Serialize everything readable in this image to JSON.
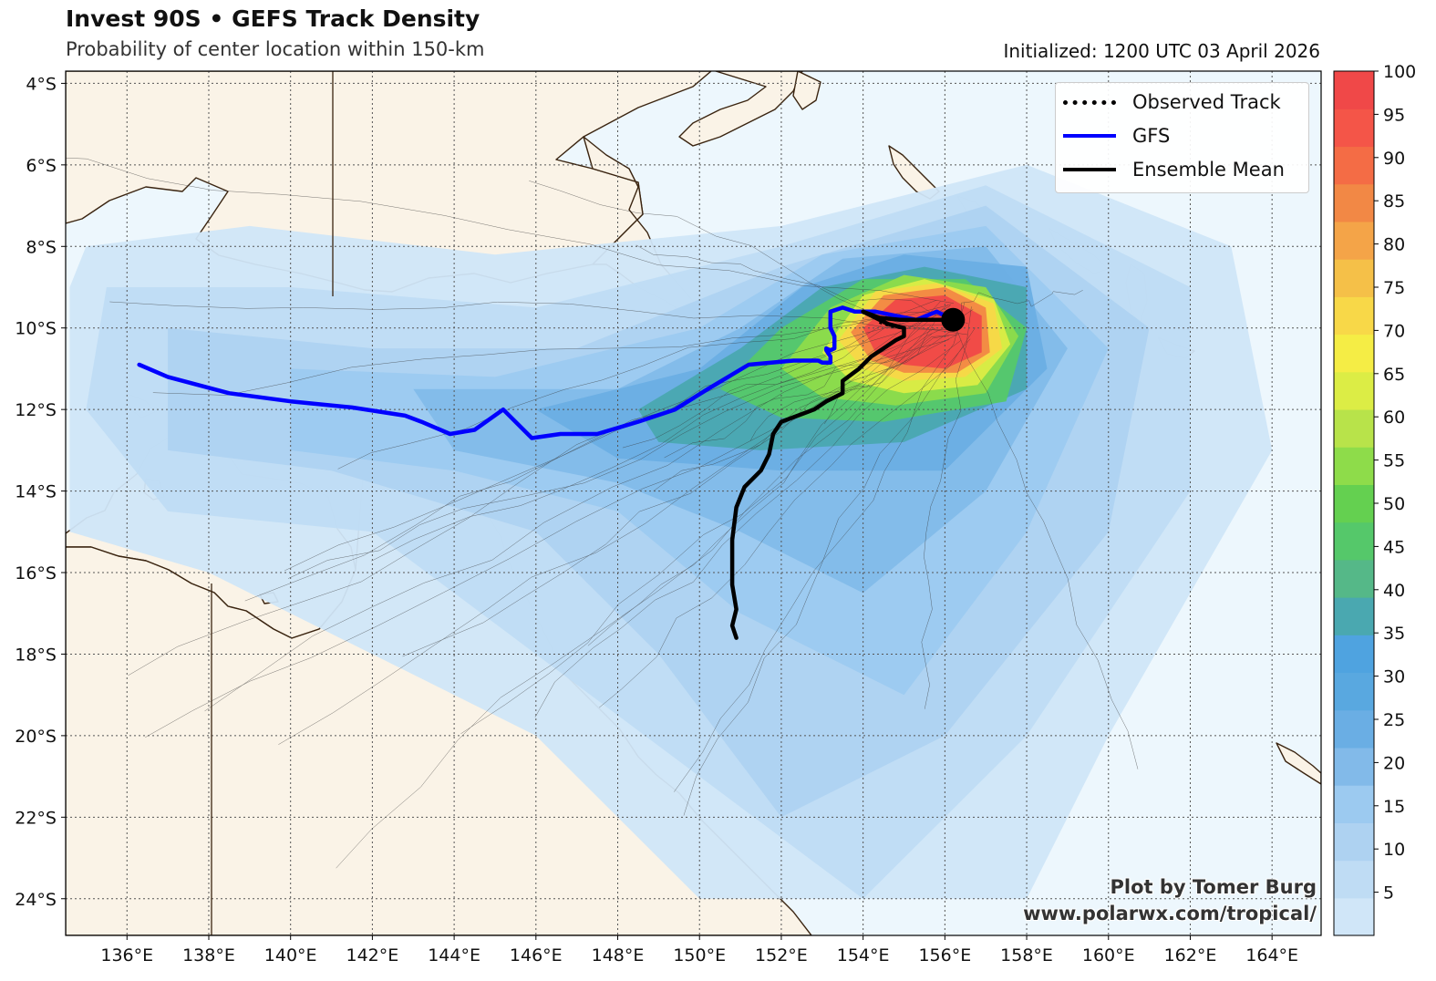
{
  "header": {
    "title": "Invest 90S • GEFS Track Density",
    "subtitle": "Probability of center location within 150-km",
    "initialized": "Initialized: 1200 UTC 03 April 2026"
  },
  "legend": [
    {
      "label": "Observed Track",
      "color": "#000000",
      "style": "dotted"
    },
    {
      "label": "GFS",
      "color": "#0000ff",
      "style": "solid"
    },
    {
      "label": "Ensemble Mean",
      "color": "#000000",
      "style": "solid"
    }
  ],
  "credit": {
    "line1": "Plot by Tomer Burg",
    "line2": "www.polarwx.com/tropical/"
  },
  "axes": {
    "lon_labels": [
      "136°E",
      "138°E",
      "140°E",
      "142°E",
      "144°E",
      "146°E",
      "148°E",
      "150°E",
      "152°E",
      "154°E",
      "156°E",
      "158°E",
      "160°E",
      "162°E",
      "164°E"
    ],
    "lon_values": [
      136,
      138,
      140,
      142,
      144,
      146,
      148,
      150,
      152,
      154,
      156,
      158,
      160,
      162,
      164
    ],
    "lat_labels": [
      "4°S",
      "6°S",
      "8°S",
      "10°S",
      "12°S",
      "14°S",
      "16°S",
      "18°S",
      "20°S",
      "22°S",
      "24°S"
    ],
    "lat_values": [
      -4,
      -6,
      -8,
      -10,
      -12,
      -14,
      -16,
      -18,
      -20,
      -22,
      -24
    ],
    "lon_range": [
      134.5,
      165.2
    ],
    "lat_range": [
      -24.9,
      -3.7
    ]
  },
  "colorbar": {
    "labels": [
      "5",
      "10",
      "15",
      "20",
      "25",
      "30",
      "35",
      "40",
      "45",
      "50",
      "55",
      "60",
      "65",
      "70",
      "75",
      "80",
      "85",
      "90",
      "95",
      "100"
    ],
    "colors": [
      "#d0e6f8",
      "#bfdcf4",
      "#aed2f1",
      "#9ccaf0",
      "#82bae9",
      "#6aaee4",
      "#59a8e0",
      "#4fa3e0",
      "#4aa8b0",
      "#55b888",
      "#55c86a",
      "#64d050",
      "#8edc4a",
      "#b8e34a",
      "#dced45",
      "#f5ed45",
      "#f8d848",
      "#f5c048",
      "#f4a448",
      "#f28845",
      "#f46c45",
      "#f45548",
      "#f04848"
    ]
  },
  "map_data": {
    "storm_position": {
      "lon": 156.2,
      "lat": -9.8
    },
    "gfs_track": [
      [
        136.3,
        -10.9
      ],
      [
        137.0,
        -11.2
      ],
      [
        138.5,
        -11.6
      ],
      [
        140.0,
        -11.8
      ],
      [
        141.5,
        -11.95
      ],
      [
        142.8,
        -12.15
      ],
      [
        143.2,
        -12.3
      ],
      [
        143.9,
        -12.6
      ],
      [
        144.5,
        -12.5
      ],
      [
        145.2,
        -12.0
      ],
      [
        145.9,
        -12.7
      ],
      [
        146.6,
        -12.6
      ],
      [
        147.5,
        -12.6
      ],
      [
        148.5,
        -12.3
      ],
      [
        149.4,
        -12.0
      ],
      [
        150.2,
        -11.5
      ],
      [
        151.2,
        -10.9
      ],
      [
        152.3,
        -10.8
      ],
      [
        152.9,
        -10.8
      ],
      [
        153.0,
        -10.85
      ],
      [
        153.2,
        -10.85
      ],
      [
        153.2,
        -10.7
      ],
      [
        153.1,
        -10.55
      ],
      [
        153.1,
        -10.5
      ],
      [
        153.2,
        -10.55
      ],
      [
        153.3,
        -10.5
      ],
      [
        153.3,
        -10.2
      ],
      [
        153.2,
        -10.0
      ],
      [
        153.2,
        -9.6
      ],
      [
        153.5,
        -9.5
      ],
      [
        153.8,
        -9.6
      ],
      [
        154.3,
        -9.6
      ],
      [
        154.8,
        -9.7
      ],
      [
        155.3,
        -9.8
      ],
      [
        155.8,
        -9.6
      ],
      [
        156.2,
        -9.8
      ]
    ],
    "mean_track": [
      [
        156.2,
        -9.8
      ],
      [
        155.6,
        -9.8
      ],
      [
        154.9,
        -9.8
      ],
      [
        154.4,
        -9.75
      ],
      [
        154.0,
        -9.6
      ],
      [
        154.3,
        -9.75
      ],
      [
        154.6,
        -9.9
      ],
      [
        155.0,
        -10.0
      ],
      [
        155.0,
        -10.2
      ],
      [
        154.8,
        -10.3
      ],
      [
        154.5,
        -10.5
      ],
      [
        154.2,
        -10.7
      ],
      [
        153.9,
        -11.0
      ],
      [
        153.5,
        -11.3
      ],
      [
        153.5,
        -11.6
      ],
      [
        153.1,
        -11.8
      ],
      [
        152.8,
        -12.0
      ],
      [
        152.0,
        -12.3
      ],
      [
        151.8,
        -12.6
      ],
      [
        151.7,
        -13.1
      ],
      [
        151.5,
        -13.5
      ],
      [
        151.1,
        -13.9
      ],
      [
        150.9,
        -14.4
      ],
      [
        150.8,
        -15.2
      ],
      [
        150.8,
        -16.3
      ],
      [
        150.9,
        -16.9
      ],
      [
        150.8,
        -17.3
      ],
      [
        150.9,
        -17.6
      ]
    ],
    "observed_track": [
      [
        154.4,
        -9.85
      ],
      [
        154.7,
        -9.95
      ],
      [
        155.0,
        -10.0
      ]
    ]
  }
}
